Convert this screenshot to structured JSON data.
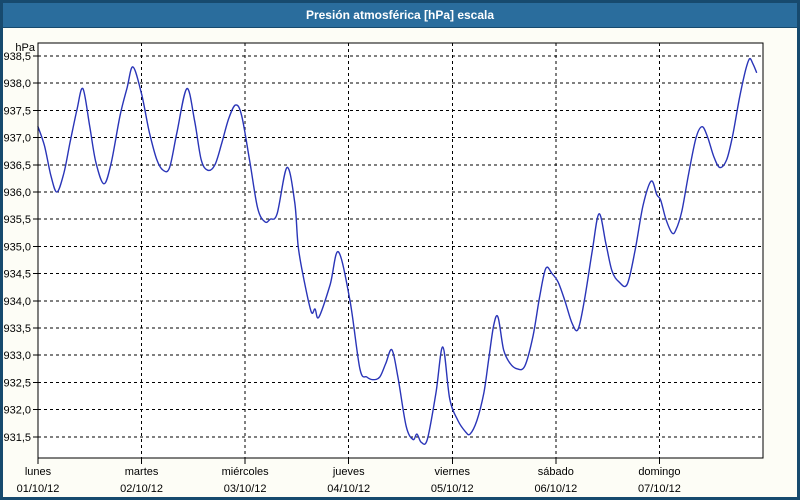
{
  "window": {
    "title": "Presión atmosférica [hPa] escala"
  },
  "colors": {
    "titlebar_bg": "#2a6d9d",
    "titlebar_text": "#ffffff",
    "window_border": "#174a6e",
    "content_bg": "#fdfdf6",
    "plot_bg": "#ffffff",
    "line": "#2a35b8",
    "grid": "#000000",
    "label": "#000000"
  },
  "chart_data": {
    "type": "line",
    "title": "Presión atmosférica [hPa] escala",
    "grid": true,
    "legend_position": "none",
    "y_axis": {
      "unit_label": "hPa",
      "min": 931.5,
      "max": 938.5,
      "step": 0.5,
      "decimal_separator": ",",
      "tick_labels": [
        "938,5",
        "938,0",
        "937,5",
        "937,0",
        "936,5",
        "936,0",
        "935,5",
        "935,0",
        "934,5",
        "934,0",
        "933,5",
        "933,0",
        "932,5",
        "932,0",
        "931,5"
      ],
      "ylim": [
        931.1,
        938.75
      ]
    },
    "x_axis": {
      "hours_span": 168,
      "days": [
        {
          "name": "lunes",
          "date": "01/10/12"
        },
        {
          "name": "martes",
          "date": "02/10/12"
        },
        {
          "name": "miércoles",
          "date": "03/10/12"
        },
        {
          "name": "jueves",
          "date": "04/10/12"
        },
        {
          "name": "viernes",
          "date": "05/10/12"
        },
        {
          "name": "sábado",
          "date": "06/10/12"
        },
        {
          "name": "domingo",
          "date": "07/10/12"
        }
      ]
    },
    "series": [
      {
        "name": "Presión atmosférica",
        "unit": "hPa",
        "color": "#2a35b8",
        "points_hours_hpa": [
          [
            0,
            937.2
          ],
          [
            1.5,
            936.85
          ],
          [
            3,
            936.3
          ],
          [
            4.4,
            936.0
          ],
          [
            6,
            936.35
          ],
          [
            7.4,
            936.9
          ],
          [
            9,
            937.5
          ],
          [
            10.4,
            937.9
          ],
          [
            12,
            937.2
          ],
          [
            13.4,
            936.55
          ],
          [
            15.3,
            936.15
          ],
          [
            17,
            936.55
          ],
          [
            19,
            937.4
          ],
          [
            20.6,
            937.9
          ],
          [
            22,
            938.3
          ],
          [
            24,
            937.8
          ],
          [
            25.8,
            937.1
          ],
          [
            27.5,
            936.6
          ],
          [
            29,
            936.4
          ],
          [
            30.5,
            936.45
          ],
          [
            32.2,
            937.1
          ],
          [
            34.5,
            937.9
          ],
          [
            36.3,
            937.3
          ],
          [
            37.8,
            936.6
          ],
          [
            39.3,
            936.4
          ],
          [
            41,
            936.5
          ],
          [
            42.6,
            936.9
          ],
          [
            44.2,
            937.35
          ],
          [
            45.8,
            937.6
          ],
          [
            47.2,
            937.4
          ],
          [
            49.1,
            936.55
          ],
          [
            50.9,
            935.7
          ],
          [
            52.6,
            935.45
          ],
          [
            53.8,
            935.5
          ],
          [
            55.4,
            935.6
          ],
          [
            57.7,
            936.45
          ],
          [
            59.5,
            935.8
          ],
          [
            60.3,
            935.0
          ],
          [
            61.6,
            934.4
          ],
          [
            63.3,
            933.8
          ],
          [
            64.2,
            933.85
          ],
          [
            65.1,
            933.7
          ],
          [
            67.7,
            934.3
          ],
          [
            69.6,
            934.9
          ],
          [
            72.3,
            934.0
          ],
          [
            74.6,
            932.75
          ],
          [
            76.2,
            932.6
          ],
          [
            77.6,
            932.55
          ],
          [
            79.2,
            932.6
          ],
          [
            80.6,
            932.85
          ],
          [
            82,
            933.1
          ],
          [
            83.4,
            932.6
          ],
          [
            85.3,
            931.7
          ],
          [
            86.9,
            931.45
          ],
          [
            87.8,
            931.55
          ],
          [
            88.8,
            931.4
          ],
          [
            90.2,
            931.45
          ],
          [
            92.2,
            932.3
          ],
          [
            93.8,
            933.15
          ],
          [
            95.4,
            932.2
          ],
          [
            97.3,
            931.8
          ],
          [
            99,
            931.6
          ],
          [
            100.1,
            931.55
          ],
          [
            101.7,
            931.8
          ],
          [
            103.3,
            932.3
          ],
          [
            104.4,
            932.9
          ],
          [
            105.6,
            933.55
          ],
          [
            106.6,
            933.7
          ],
          [
            107.9,
            933.1
          ],
          [
            109.4,
            932.85
          ],
          [
            111,
            932.75
          ],
          [
            112.8,
            932.8
          ],
          [
            114.7,
            933.35
          ],
          [
            116.3,
            934.1
          ],
          [
            117.7,
            934.6
          ],
          [
            119.1,
            934.5
          ],
          [
            120.5,
            934.35
          ],
          [
            122.1,
            934.0
          ],
          [
            123.7,
            933.6
          ],
          [
            125.1,
            933.47
          ],
          [
            126.6,
            934.0
          ],
          [
            128.4,
            934.9
          ],
          [
            130,
            935.6
          ],
          [
            131.6,
            935.05
          ],
          [
            133,
            934.55
          ],
          [
            134.6,
            934.35
          ],
          [
            136.5,
            934.3
          ],
          [
            138.3,
            934.9
          ],
          [
            140.2,
            935.75
          ],
          [
            142.1,
            936.2
          ],
          [
            143.4,
            935.95
          ],
          [
            144.3,
            935.85
          ],
          [
            145.5,
            935.5
          ],
          [
            146.9,
            935.25
          ],
          [
            147.8,
            935.3
          ],
          [
            149.2,
            935.65
          ],
          [
            150.8,
            936.35
          ],
          [
            152.5,
            937.0
          ],
          [
            153.9,
            937.2
          ],
          [
            155.2,
            937.0
          ],
          [
            156.6,
            936.65
          ],
          [
            158,
            936.45
          ],
          [
            159.6,
            936.6
          ],
          [
            161,
            937.05
          ],
          [
            162.6,
            937.75
          ],
          [
            164,
            938.25
          ],
          [
            164.9,
            938.45
          ],
          [
            165.7,
            938.35
          ],
          [
            166.5,
            938.2
          ]
        ]
      }
    ]
  }
}
